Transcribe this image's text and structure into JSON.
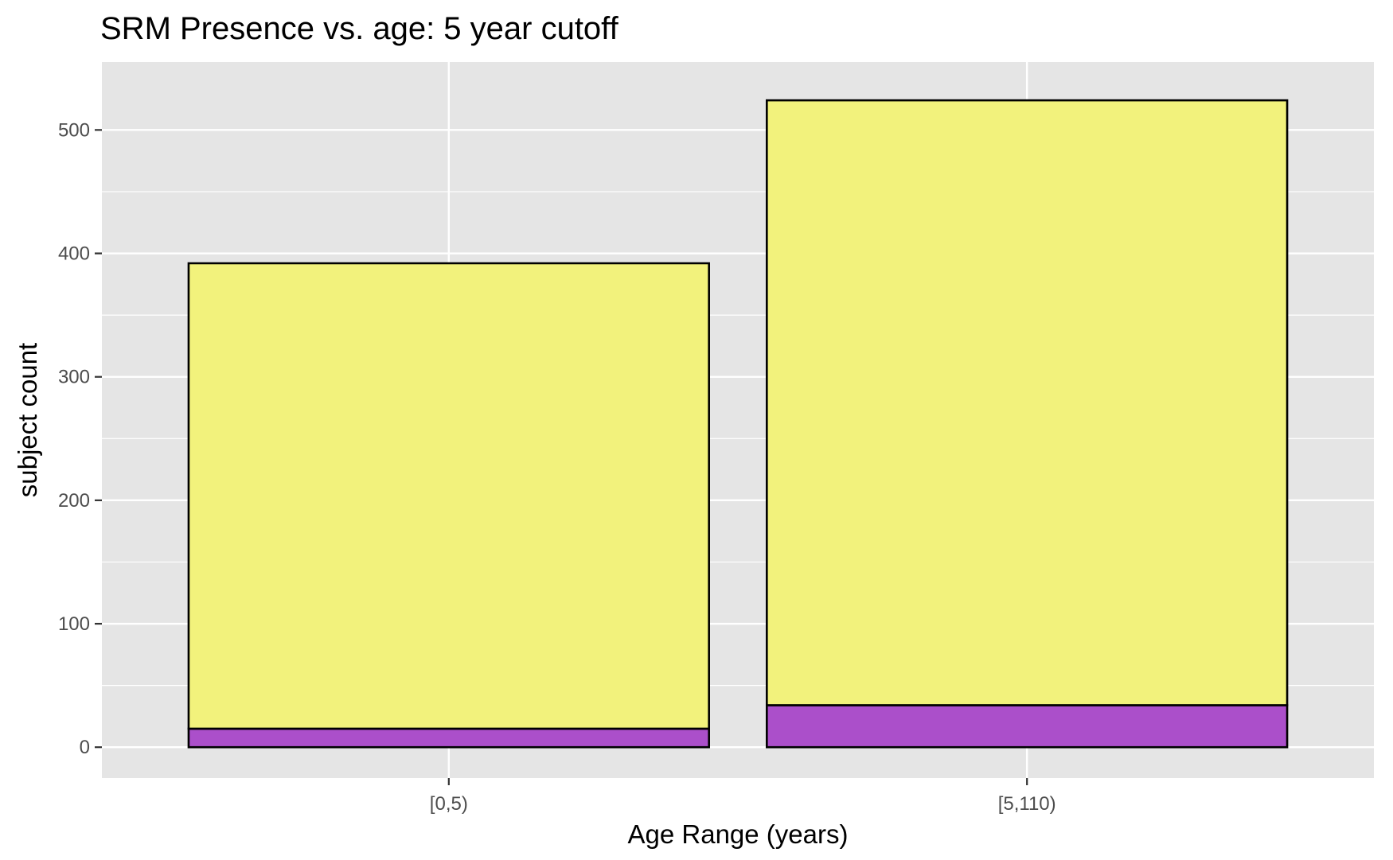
{
  "chart_data": {
    "type": "bar",
    "stacked": true,
    "title": "SRM Presence vs. age: 5 year cutoff",
    "xlabel": "Age Range (years)",
    "ylabel": "subject count",
    "categories": [
      "[0,5)",
      "[5,110)"
    ],
    "series": [
      {
        "values": [
          15,
          34
        ],
        "color": "#a94bc9"
      },
      {
        "values": [
          377,
          490
        ],
        "color": "#f2f279"
      }
    ],
    "ylim": [
      -25,
      555
    ],
    "yticks": [
      0,
      100,
      200,
      300,
      400,
      500
    ],
    "grid": true,
    "panel_background": "#e5e5e5",
    "grid_color": "#ffffff",
    "bar_outline": "#000000"
  }
}
